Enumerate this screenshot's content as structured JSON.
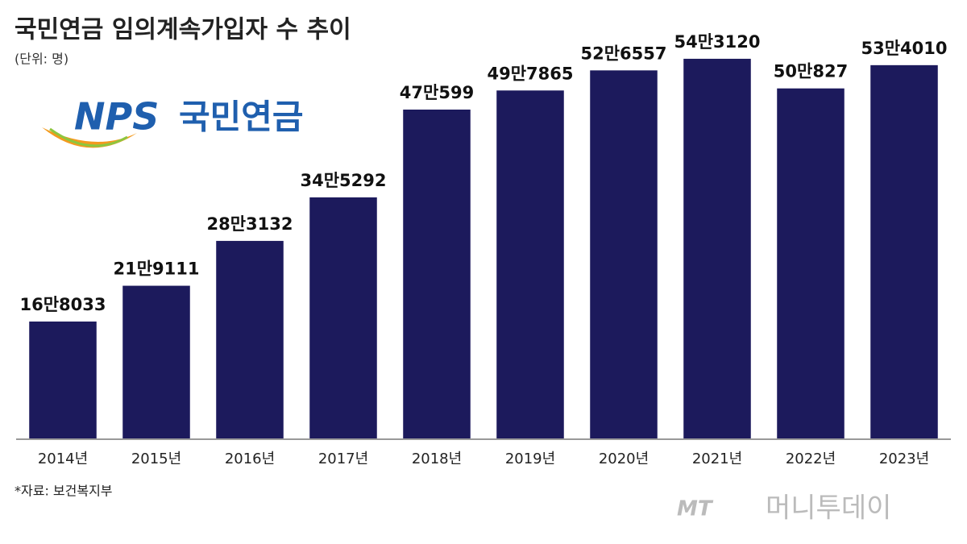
{
  "chart_data": {
    "type": "bar",
    "title": "국민연금 임의계속가입자 수 추이",
    "subtitle": "(단위: 명)",
    "source": "*자료: 보건복지부",
    "categories": [
      "2014년",
      "2015년",
      "2016년",
      "2017년",
      "2018년",
      "2019년",
      "2020년",
      "2021년",
      "2022년",
      "2023년"
    ],
    "values": [
      168033,
      219111,
      283132,
      345292,
      470599,
      497865,
      526557,
      543120,
      500827,
      534010
    ],
    "value_labels": [
      "16만8033",
      "21만9111",
      "28만3132",
      "34만5292",
      "47만599",
      "49만7865",
      "52만6557",
      "54만3120",
      "50만827",
      "53만4010"
    ],
    "color": "#1c1a5c",
    "ylim": [
      0,
      600000
    ]
  },
  "logo": {
    "mark": "NPS",
    "text": "국민연금"
  },
  "watermark": {
    "mark": "MT",
    "text": "머니투데이"
  }
}
